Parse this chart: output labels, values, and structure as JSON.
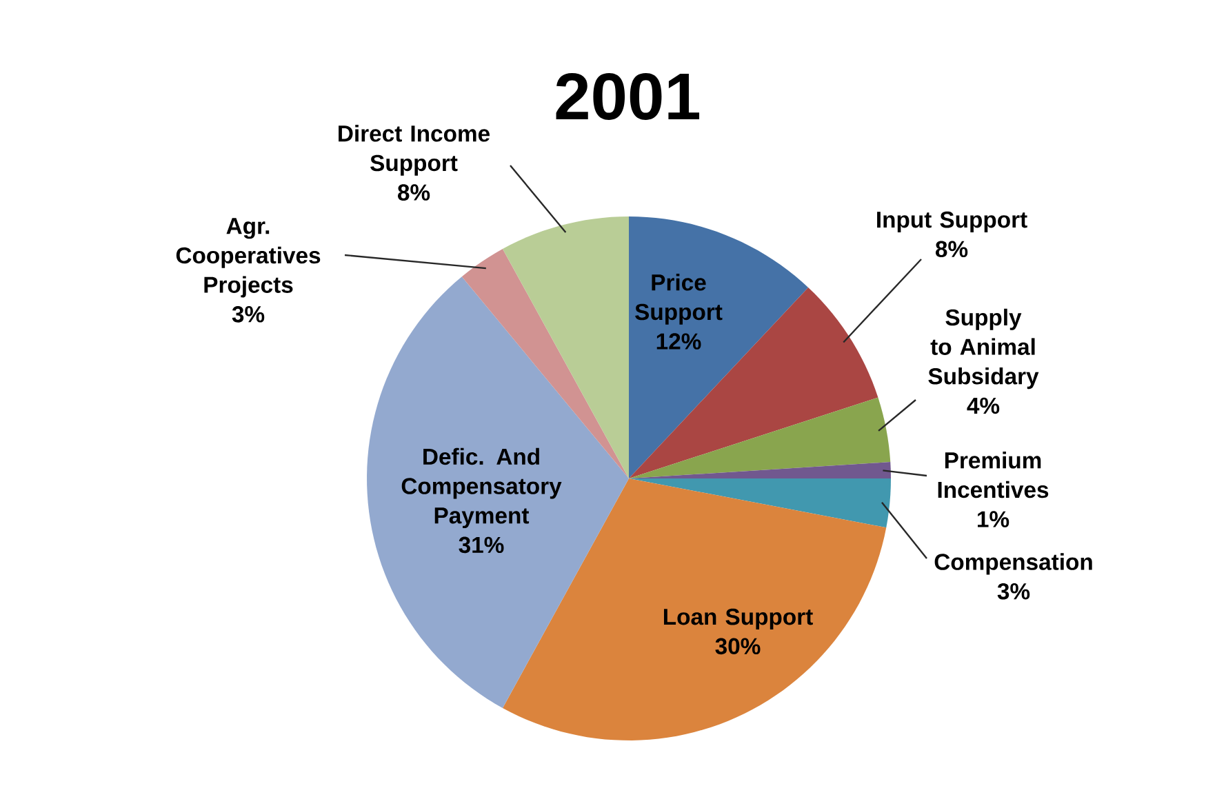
{
  "chart_data": {
    "type": "pie",
    "title": "2001",
    "categories": [
      "Price Support",
      "Input Support",
      "Supply to Animal Subsidary",
      "Premium Incentives",
      "Compensation",
      "Loan Support",
      "Defic. And Compensatory Payment",
      "Agr. Cooperatives Projects",
      "Direct Income Support"
    ],
    "values": [
      12,
      8,
      4,
      1,
      3,
      30,
      31,
      3,
      8
    ],
    "value_labels": [
      "12%",
      "8%",
      "4%",
      "1%",
      "3%",
      "30%",
      "31%",
      "3%",
      "8%"
    ],
    "colors": [
      "#4572a7",
      "#aa4643",
      "#89a54e",
      "#71588f",
      "#4198af",
      "#db843d",
      "#93a9cf",
      "#d19392",
      "#b9cd96"
    ]
  }
}
